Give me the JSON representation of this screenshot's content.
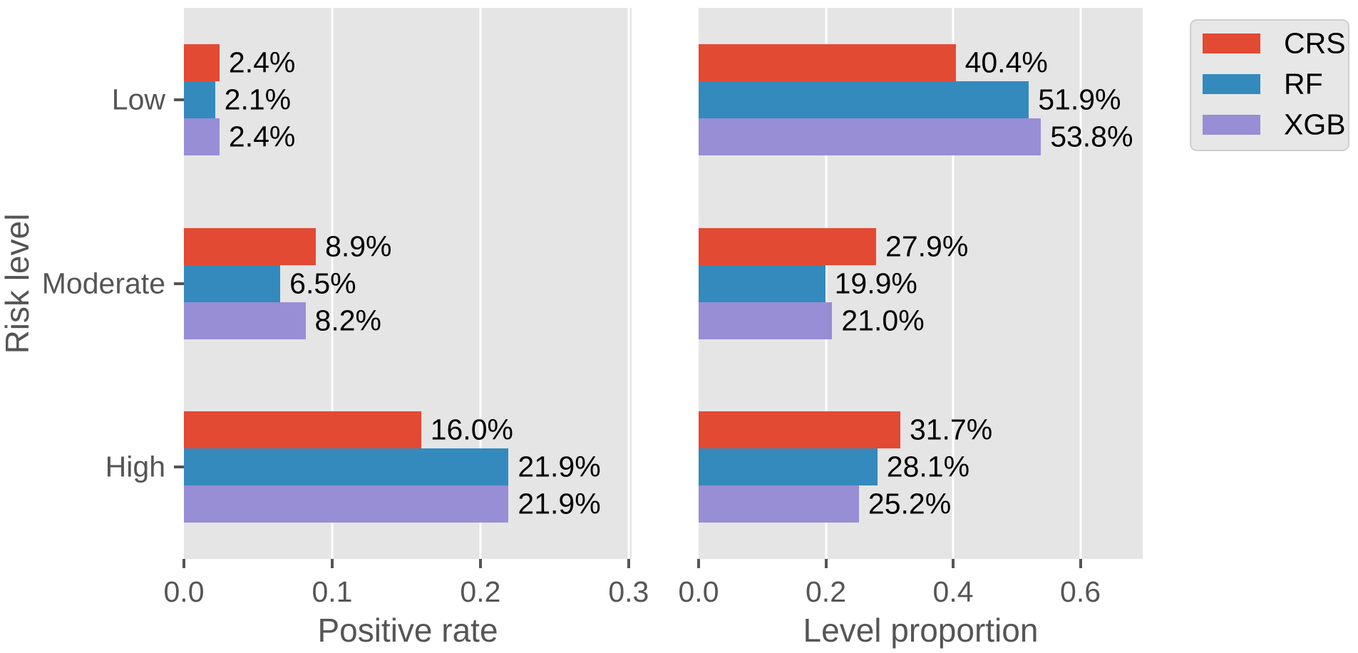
{
  "chart_data": [
    {
      "type": "bar",
      "orientation": "horizontal",
      "xlabel": "Positive rate",
      "ylabel": "Risk level",
      "categories": [
        "Low",
        "Moderate",
        "High"
      ],
      "series": [
        {
          "name": "CRS",
          "color": "#E24A33",
          "values": [
            0.024,
            0.089,
            0.16
          ],
          "value_labels": [
            "2.4%",
            "8.9%",
            "16.0%"
          ]
        },
        {
          "name": "RF",
          "color": "#348ABD",
          "values": [
            0.021,
            0.065,
            0.219
          ],
          "value_labels": [
            "2.1%",
            "6.5%",
            "21.9%"
          ]
        },
        {
          "name": "XGB",
          "color": "#988ED5",
          "values": [
            0.024,
            0.082,
            0.219
          ],
          "value_labels": [
            "2.4%",
            "8.2%",
            "21.9%"
          ]
        }
      ],
      "xticks": [
        0.0,
        0.1,
        0.2,
        0.3
      ],
      "xtick_labels": [
        "0.0",
        "0.1",
        "0.2",
        "0.3"
      ],
      "xlim": [
        0,
        0.302
      ],
      "grid": true,
      "show_category_labels": true
    },
    {
      "type": "bar",
      "orientation": "horizontal",
      "xlabel": "Level proportion",
      "ylabel": "Risk level",
      "categories": [
        "Low",
        "Moderate",
        "High"
      ],
      "series": [
        {
          "name": "CRS",
          "color": "#E24A33",
          "values": [
            0.404,
            0.279,
            0.317
          ],
          "value_labels": [
            "40.4%",
            "27.9%",
            "31.7%"
          ]
        },
        {
          "name": "RF",
          "color": "#348ABD",
          "values": [
            0.519,
            0.199,
            0.281
          ],
          "value_labels": [
            "51.9%",
            "19.9%",
            "28.1%"
          ]
        },
        {
          "name": "XGB",
          "color": "#988ED5",
          "values": [
            0.538,
            0.21,
            0.252
          ],
          "value_labels": [
            "53.8%",
            "21.0%",
            "25.2%"
          ]
        }
      ],
      "xticks": [
        0.0,
        0.2,
        0.4,
        0.6
      ],
      "xtick_labels": [
        "0.0",
        "0.2",
        "0.4",
        "0.6"
      ],
      "xlim": [
        0,
        0.698
      ],
      "grid": true,
      "show_category_labels": false
    }
  ],
  "y_axis_title": "Risk level",
  "legend": {
    "position": "upper right",
    "entries": [
      {
        "label": "CRS",
        "color": "#E24A33"
      },
      {
        "label": "RF",
        "color": "#348ABD"
      },
      {
        "label": "XGB",
        "color": "#988ED5"
      }
    ]
  },
  "style": {
    "panel_bg": "#E5E5E5",
    "grid_color": "#FFFFFF",
    "tick_color": "#555555",
    "axis_text_color": "#555555",
    "value_label_color": "#000000",
    "legend_bg": "#E7E7E7",
    "legend_border": "#CFCFCF"
  }
}
